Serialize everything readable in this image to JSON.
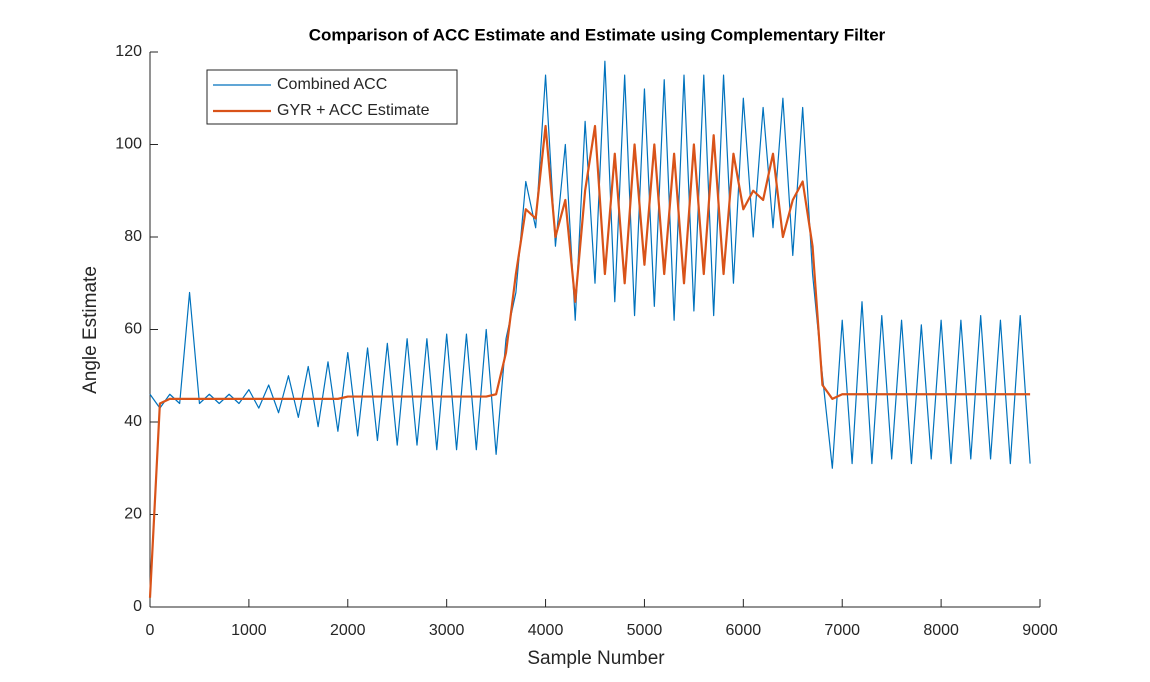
{
  "chart_data": {
    "type": "line",
    "title": "Comparison of ACC Estimate and Estimate using Complementary Filter",
    "x_label": "Sample Number",
    "y_label": "Angle Estimate",
    "x": [
      0,
      100,
      200,
      300,
      400,
      500,
      600,
      700,
      800,
      900,
      1000,
      1100,
      1200,
      1300,
      1400,
      1500,
      1600,
      1700,
      1800,
      1900,
      2000,
      2100,
      2200,
      2300,
      2400,
      2500,
      2600,
      2700,
      2800,
      2900,
      3000,
      3100,
      3200,
      3300,
      3400,
      3500,
      3600,
      3700,
      3800,
      3900,
      4000,
      4100,
      4200,
      4300,
      4400,
      4500,
      4600,
      4700,
      4800,
      4900,
      5000,
      5100,
      5200,
      5300,
      5400,
      5500,
      5600,
      5700,
      5800,
      5900,
      6000,
      6100,
      6200,
      6300,
      6400,
      6500,
      6600,
      6700,
      6800,
      6900,
      7000,
      7100,
      7200,
      7300,
      7400,
      7500,
      7600,
      7700,
      7800,
      7900,
      8000,
      8100,
      8200,
      8300,
      8400,
      8500,
      8600,
      8700,
      8800,
      8900
    ],
    "series": [
      {
        "name": "Combined ACC",
        "color": "#0072bd",
        "width": 1.2,
        "values": [
          46,
          43,
          46,
          44,
          68,
          44,
          46,
          44,
          46,
          44,
          47,
          43,
          48,
          42,
          50,
          41,
          52,
          39,
          53,
          38,
          55,
          37,
          56,
          36,
          57,
          35,
          58,
          35,
          58,
          34,
          59,
          34,
          59,
          34,
          60,
          33,
          58,
          68,
          92,
          82,
          115,
          78,
          100,
          62,
          105,
          70,
          118,
          66,
          115,
          63,
          112,
          65,
          114,
          62,
          115,
          64,
          115,
          63,
          115,
          70,
          110,
          80,
          108,
          82,
          110,
          76,
          108,
          72,
          50,
          30,
          62,
          31,
          66,
          31,
          63,
          32,
          62,
          31,
          61,
          32,
          62,
          31,
          62,
          32,
          63,
          32,
          62,
          31,
          63,
          31
        ]
      },
      {
        "name": "GYR + ACC Estimate",
        "color": "#d95319",
        "width": 2.2,
        "values": [
          2,
          44,
          45,
          45,
          45,
          45,
          45,
          45,
          45,
          45,
          45,
          45,
          45,
          45,
          45,
          45,
          45,
          45,
          45,
          45,
          45.5,
          45.5,
          45.5,
          45.5,
          45.5,
          45.5,
          45.5,
          45.5,
          45.5,
          45.5,
          45.5,
          45.5,
          45.5,
          45.5,
          45.5,
          46,
          55,
          72,
          86,
          84,
          104,
          80,
          88,
          66,
          90,
          104,
          72,
          98,
          70,
          100,
          74,
          100,
          72,
          98,
          70,
          100,
          72,
          102,
          72,
          98,
          86,
          90,
          88,
          98,
          80,
          88,
          92,
          78,
          48,
          45,
          46,
          46,
          46,
          46,
          46,
          46,
          46,
          46,
          46,
          46,
          46,
          46,
          46,
          46,
          46,
          46,
          46,
          46,
          46,
          46
        ]
      }
    ],
    "xlim": [
      0,
      9000
    ],
    "xticks": [
      0,
      1000,
      2000,
      3000,
      4000,
      5000,
      6000,
      7000,
      8000,
      9000
    ],
    "ylim": [
      0,
      120
    ],
    "yticks": [
      0,
      20,
      40,
      60,
      80,
      100,
      120
    ],
    "legend": "upper left"
  }
}
